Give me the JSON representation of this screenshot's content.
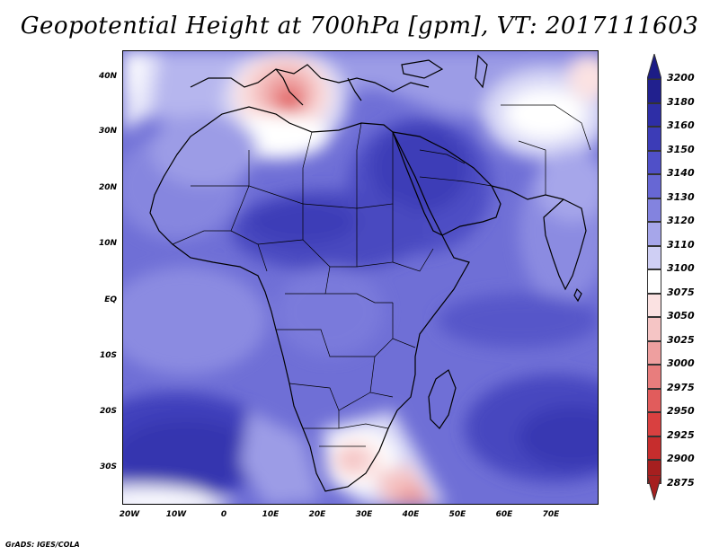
{
  "title": "Geopotential Height at 700hPa [gpm], VT: 2017111603",
  "footer": "GrADS: IGES/COLA",
  "y_axis_labels": [
    "40N",
    "30N",
    "20N",
    "10N",
    "EQ",
    "10S",
    "20S",
    "30S"
  ],
  "x_axis_labels": [
    "20W",
    "10W",
    "0",
    "10E",
    "20E",
    "30E",
    "40E",
    "50E",
    "60E",
    "70E"
  ],
  "colorbar": {
    "top_value": "3200",
    "levels": [
      {
        "label": "3180",
        "color": "#21208e"
      },
      {
        "label": "3160",
        "color": "#2e2ea6"
      },
      {
        "label": "3150",
        "color": "#3c3cb7"
      },
      {
        "label": "3140",
        "color": "#5050c8"
      },
      {
        "label": "3130",
        "color": "#6767d4"
      },
      {
        "label": "3120",
        "color": "#8383df"
      },
      {
        "label": "3110",
        "color": "#a6a6ea"
      },
      {
        "label": "3100",
        "color": "#cfcff4"
      },
      {
        "label": "3075",
        "color": "#ffffff"
      },
      {
        "label": "3050",
        "color": "#fbe2e2"
      },
      {
        "label": "3025",
        "color": "#f5c5c5"
      },
      {
        "label": "3000",
        "color": "#ee9f9f"
      },
      {
        "label": "2975",
        "color": "#e87d7d"
      },
      {
        "label": "2950",
        "color": "#e15c5c"
      },
      {
        "label": "2925",
        "color": "#d94040"
      },
      {
        "label": "2900",
        "color": "#c62d2d"
      },
      {
        "label": "2875",
        "color": "#a61f1f"
      }
    ],
    "top_arrow_color": "#1c1c86",
    "bottom_arrow_color": "#a61f1f"
  },
  "map": {
    "region": "Africa and surrounding ocean",
    "lon_range": [
      -25,
      80
    ],
    "lat_range": [
      -38,
      45
    ],
    "base_color": "#6d6dd5"
  }
}
